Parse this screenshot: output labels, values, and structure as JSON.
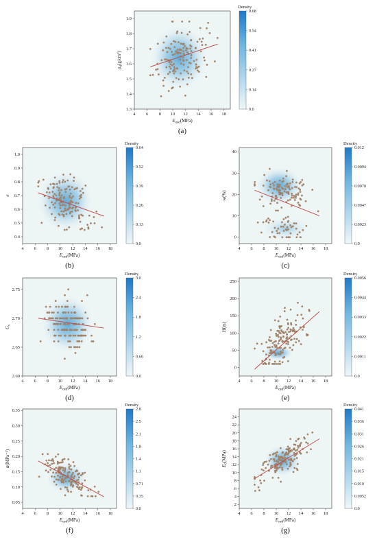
{
  "figure": {
    "colorbar_label": "Density",
    "colors": {
      "density_core": "#5aa7d6",
      "density_edge": "#e8f3f6",
      "plot_background": "#eef5f5",
      "point_fill": "#a98a6e",
      "point_stroke": "#8f6d55",
      "fit_line": "#c0504d",
      "colorbar_top": "#1f78c8",
      "colorbar_bottom": "#eef7fa"
    }
  },
  "chart_data": [
    {
      "id": "a",
      "type": "scatter",
      "panel_label": "(a)",
      "xlabel": "E_oed(MPa)",
      "ylabel": "ρ_d(g/cm³)",
      "xlim": [
        4,
        19
      ],
      "ylim": [
        1.3,
        1.95
      ],
      "xticks": [
        4,
        6,
        8,
        10,
        12,
        14,
        16,
        18
      ],
      "yticks": [
        1.3,
        1.4,
        1.5,
        1.6,
        1.7,
        1.8,
        1.9
      ],
      "fit_line": {
        "x": [
          6.5,
          17
        ],
        "y": [
          1.58,
          1.73
        ]
      },
      "points": {
        "n": 150,
        "x_mean": 11.2,
        "x_sd": 1.9,
        "x_min": 6.5,
        "x_max": 17,
        "y_mean": 1.645,
        "y_sd": 0.11,
        "y_min": 1.35,
        "y_max": 1.88,
        "slope": 0.014,
        "seed": 11
      },
      "density": {
        "cx": 11,
        "cy": 1.64,
        "rx": 4.5,
        "ry": 0.22
      },
      "colorbar": {
        "title": "Density",
        "ticks": [
          "0.68",
          "0.54",
          "0.41",
          "0.27",
          "0.14",
          "0.0"
        ]
      }
    },
    {
      "id": "b",
      "type": "scatter",
      "panel_label": "(b)",
      "xlabel": "E_oed(MPa)",
      "ylabel": "e",
      "xlim": [
        4,
        19
      ],
      "ylim": [
        0.35,
        1.05
      ],
      "xticks": [
        4,
        6,
        8,
        10,
        12,
        14,
        16,
        18
      ],
      "yticks": [
        0.4,
        0.5,
        0.6,
        0.7,
        0.8,
        0.9,
        1.0
      ],
      "fit_line": {
        "x": [
          6.5,
          17
        ],
        "y": [
          0.72,
          0.55
        ]
      },
      "points": {
        "n": 150,
        "x_mean": 11,
        "x_sd": 1.9,
        "x_min": 6.5,
        "x_max": 17,
        "y_mean": 0.64,
        "y_sd": 0.1,
        "y_min": 0.45,
        "y_max": 0.92,
        "slope": -0.016,
        "seed": 22
      },
      "density": {
        "cx": 10.8,
        "cy": 0.66,
        "rx": 4.5,
        "ry": 0.22
      },
      "colorbar": {
        "title": "Density",
        "ticks": [
          "0.64",
          "0.52",
          "0.39",
          "0.26",
          "0.13",
          "0.0"
        ]
      }
    },
    {
      "id": "c",
      "type": "scatter",
      "panel_label": "(c)",
      "xlabel": "E_oed(MPa)",
      "ylabel": "w(%)",
      "xlim": [
        4,
        19
      ],
      "ylim": [
        -3,
        42
      ],
      "xticks": [
        4,
        6,
        8,
        10,
        12,
        14,
        16,
        18
      ],
      "yticks": [
        0,
        10,
        20,
        30,
        40
      ],
      "fit_line": {
        "x": [
          6.5,
          17
        ],
        "y": [
          22,
          10
        ]
      },
      "points": {
        "n": 170,
        "x_mean": 11,
        "x_sd": 1.9,
        "x_min": 6.5,
        "x_max": 17,
        "y_mean": 15,
        "y_sd": 9,
        "y_min": 0,
        "y_max": 34,
        "slope": -1.1,
        "bimodal": [
          22,
          4
        ],
        "seed": 33
      },
      "density": {
        "cx": 10.5,
        "cy": 24,
        "rx": 3.8,
        "ry": 9
      },
      "colorbar": {
        "title": "Density",
        "ticks": [
          "0.012",
          "0.0094",
          "0.0070",
          "0.0047",
          "0.0023",
          "0.0"
        ]
      }
    },
    {
      "id": "d",
      "type": "scatter",
      "panel_label": "(d)",
      "xlabel": "E_oed(MPa)",
      "ylabel": "G_s",
      "xlim": [
        4,
        19
      ],
      "ylim": [
        2.6,
        2.77
      ],
      "xticks": [
        4,
        6,
        8,
        10,
        12,
        14,
        16,
        18
      ],
      "yticks": [
        2.6,
        2.65,
        2.7,
        2.75
      ],
      "fit_line": {
        "x": [
          6.5,
          17
        ],
        "y": [
          2.7,
          2.683
        ]
      },
      "points": {
        "n": 150,
        "x_mean": 11.2,
        "x_sd": 1.9,
        "x_min": 6.5,
        "x_max": 17,
        "y_mean": 2.69,
        "y_sd": 0.02,
        "y_min": 2.63,
        "y_max": 2.75,
        "slope": -0.0015,
        "step": 0.01,
        "seed": 44
      },
      "density": {
        "cx": 11.2,
        "cy": 2.69,
        "rx": 4.2,
        "ry": 0.05
      },
      "colorbar": {
        "title": "Density",
        "ticks": [
          "3.0",
          "2.4",
          "1.8",
          "1.2",
          "0.60",
          "0.0"
        ]
      }
    },
    {
      "id": "e",
      "type": "scatter",
      "panel_label": "(e)",
      "xlabel": "E_oed(MPa)",
      "ylabel": "H(m)",
      "xlim": [
        4,
        19
      ],
      "ylim": [
        -25,
        260
      ],
      "xticks": [
        4,
        6,
        8,
        10,
        12,
        14,
        16,
        18
      ],
      "yticks": [
        0,
        50,
        100,
        150,
        200,
        250
      ],
      "fit_line": {
        "x": [
          6.5,
          17
        ],
        "y": [
          -5,
          162
        ]
      },
      "points": {
        "n": 160,
        "x_mean": 11,
        "x_sd": 1.9,
        "x_min": 6.5,
        "x_max": 17,
        "y_mean": 60,
        "y_sd": 35,
        "y_min": 10,
        "y_max": 235,
        "slope": 15,
        "seed": 55
      },
      "density": {
        "cx": 10.3,
        "cy": 42,
        "rx": 2.5,
        "ry": 22
      },
      "colorbar": {
        "title": "Density",
        "ticks": [
          "0.0056",
          "0.0044",
          "0.0033",
          "0.0022",
          "0.0011",
          "0.0"
        ]
      }
    },
    {
      "id": "f",
      "type": "scatter",
      "panel_label": "(f)",
      "xlabel": "E_oed(MPa)",
      "ylabel": "a(MPa⁻¹)",
      "xlim": [
        4,
        19
      ],
      "ylim": [
        0.03,
        0.355
      ],
      "xticks": [
        4,
        6,
        8,
        10,
        12,
        14,
        16,
        18
      ],
      "yticks": [
        0.05,
        0.1,
        0.15,
        0.2,
        0.25,
        0.3,
        0.35
      ],
      "fit_line": {
        "x": [
          6.5,
          17
        ],
        "y": [
          0.185,
          0.068
        ]
      },
      "points": {
        "n": 160,
        "x_mean": 11,
        "x_sd": 1.9,
        "x_min": 6.5,
        "x_max": 17,
        "y_mean": 0.135,
        "y_sd": 0.025,
        "y_min": 0.07,
        "y_max": 0.3,
        "slope": -0.0112,
        "seed": 66
      },
      "density": {
        "cx": 11,
        "cy": 0.13,
        "rx": 3.2,
        "ry": 0.05
      },
      "colorbar": {
        "title": "Density",
        "ticks": [
          "2.8",
          "2.5",
          "2.1",
          "1.8",
          "1.4",
          "1.1",
          "0.71",
          "0.35",
          "0.0"
        ]
      }
    },
    {
      "id": "g",
      "type": "scatter",
      "panel_label": "(g)",
      "xlabel": "E_oed(MPa)",
      "ylabel": "E_0(MPa)",
      "xlim": [
        4,
        19
      ],
      "ylim": [
        1,
        26
      ],
      "xticks": [
        4,
        6,
        8,
        10,
        12,
        14,
        16,
        18
      ],
      "yticks": [
        2,
        4,
        6,
        8,
        10,
        12,
        14,
        16,
        18,
        20,
        22,
        24
      ],
      "fit_line": {
        "x": [
          6.5,
          17
        ],
        "y": [
          8.5,
          18.5
        ]
      },
      "points": {
        "n": 170,
        "x_mean": 11,
        "x_sd": 1.9,
        "x_min": 6.5,
        "x_max": 17,
        "y_mean": 13,
        "y_sd": 1.8,
        "y_min": 5,
        "y_max": 21.5,
        "slope": 0.95,
        "seed": 77
      },
      "density": {
        "cx": 11,
        "cy": 13,
        "rx": 3,
        "ry": 4
      },
      "colorbar": {
        "title": "Density",
        "ticks": [
          "0.041",
          "0.036",
          "0.031",
          "0.026",
          "0.021",
          "0.015",
          "0.010",
          "0.0052",
          "0.0"
        ]
      }
    }
  ]
}
